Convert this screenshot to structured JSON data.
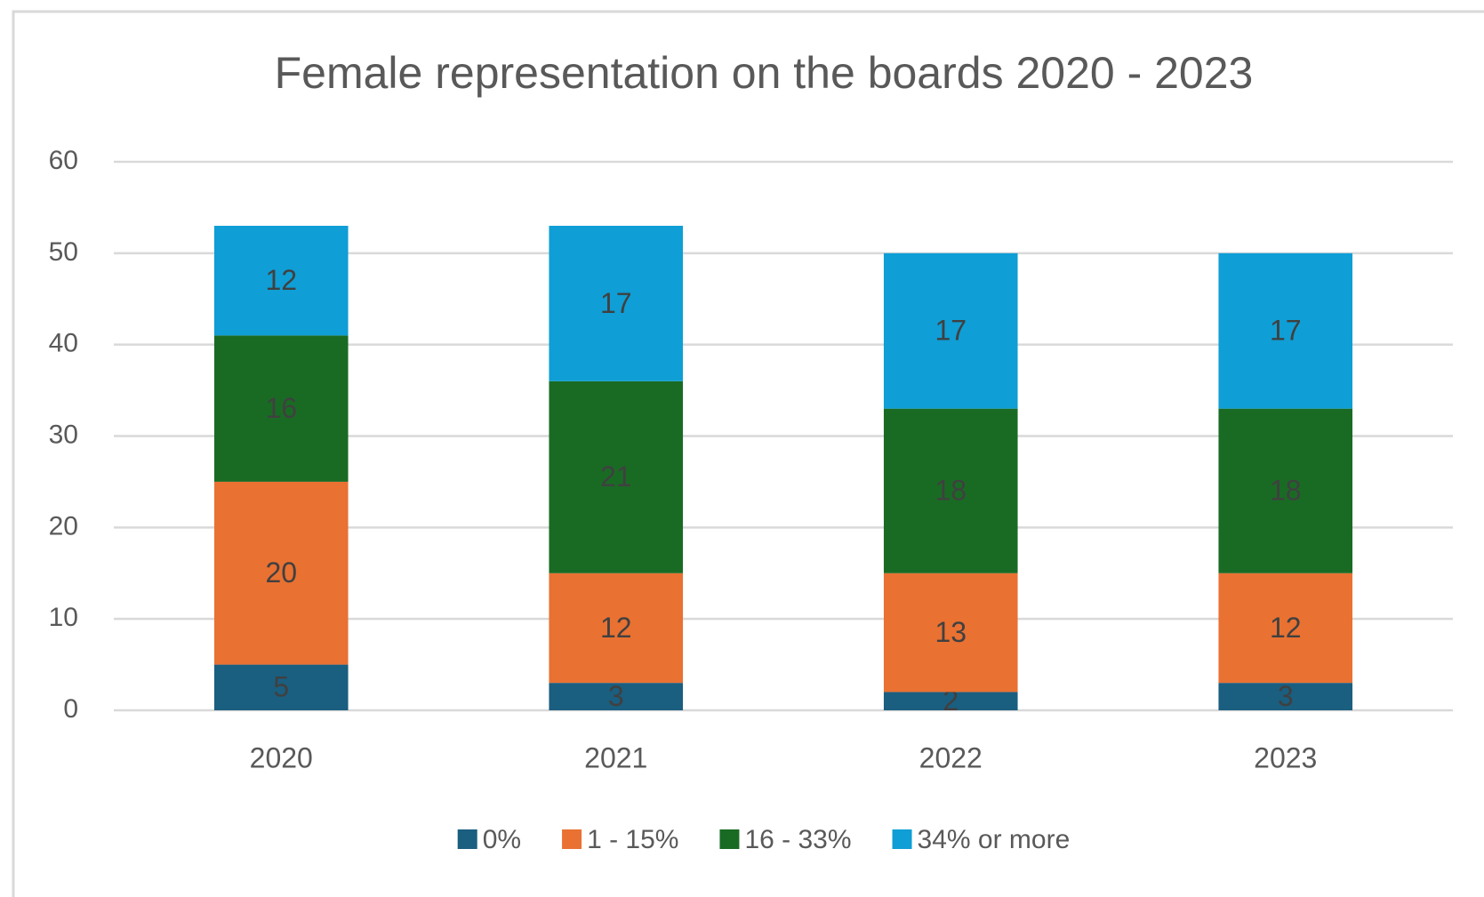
{
  "chart_data": {
    "type": "stacked_bar",
    "title": "Female representation on the boards 2020 - 2023",
    "categories": [
      "2020",
      "2021",
      "2022",
      "2023"
    ],
    "series": [
      {
        "name": "0%",
        "color": "#1a5e80",
        "values": [
          5,
          3,
          2,
          3
        ]
      },
      {
        "name": "1 - 15%",
        "color": "#e97132",
        "values": [
          20,
          12,
          13,
          12
        ]
      },
      {
        "name": "16 - 33%",
        "color": "#196b24",
        "values": [
          16,
          21,
          18,
          18
        ]
      },
      {
        "name": "34% or more",
        "color": "#0f9ed5",
        "values": [
          12,
          17,
          17,
          17
        ]
      }
    ],
    "ylim": [
      0,
      60
    ],
    "yticks": [
      0,
      10,
      20,
      30,
      40,
      50,
      60
    ],
    "grid": true,
    "legend": "bottom"
  }
}
